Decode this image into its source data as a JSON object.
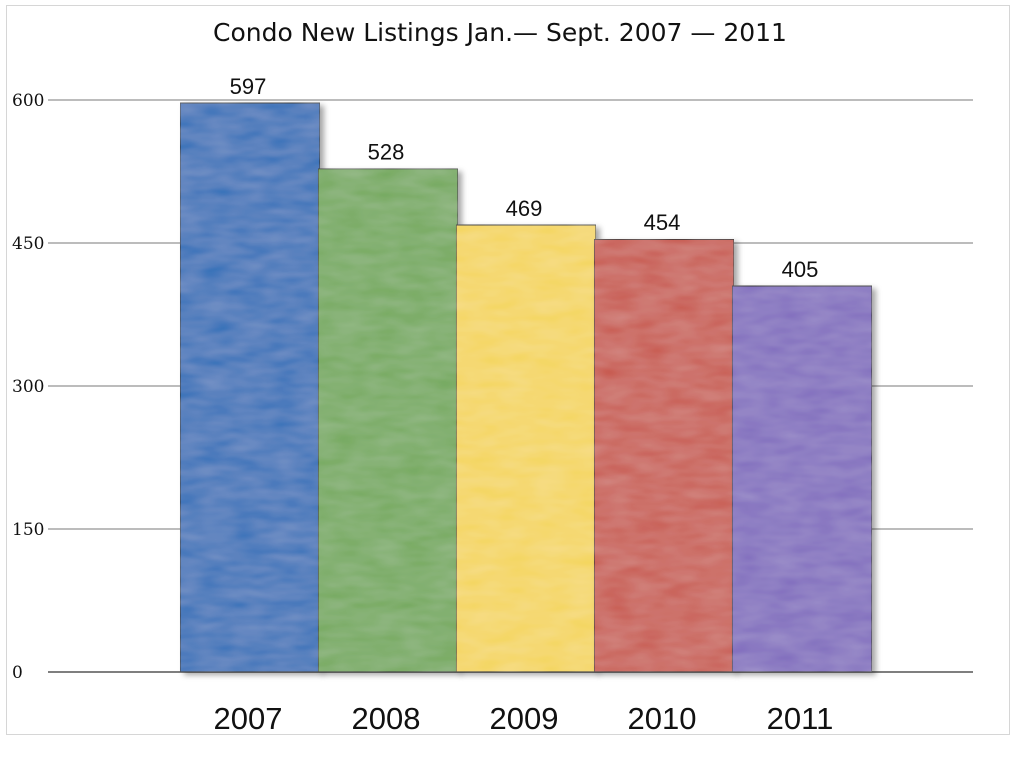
{
  "chart_data": {
    "type": "bar",
    "title": "Condo New Listings Jan.— Sept. 2007 — 2011",
    "xlabel": "",
    "ylabel": "",
    "categories": [
      "2007",
      "2008",
      "2009",
      "2010",
      "2011"
    ],
    "values": [
      597,
      528,
      469,
      454,
      405
    ],
    "data_labels": [
      "597",
      "528",
      "469",
      "454",
      "405"
    ],
    "colors": [
      "#2f6eb8",
      "#72a85a",
      "#f4d55a",
      "#c8584e",
      "#7f6bbd"
    ],
    "ylim": [
      0,
      600
    ],
    "yticks": [
      0,
      150,
      300,
      450,
      600
    ],
    "ytick_labels": [
      "0",
      "150",
      "300",
      "450",
      "600"
    ],
    "grid": true,
    "legend": "none"
  }
}
